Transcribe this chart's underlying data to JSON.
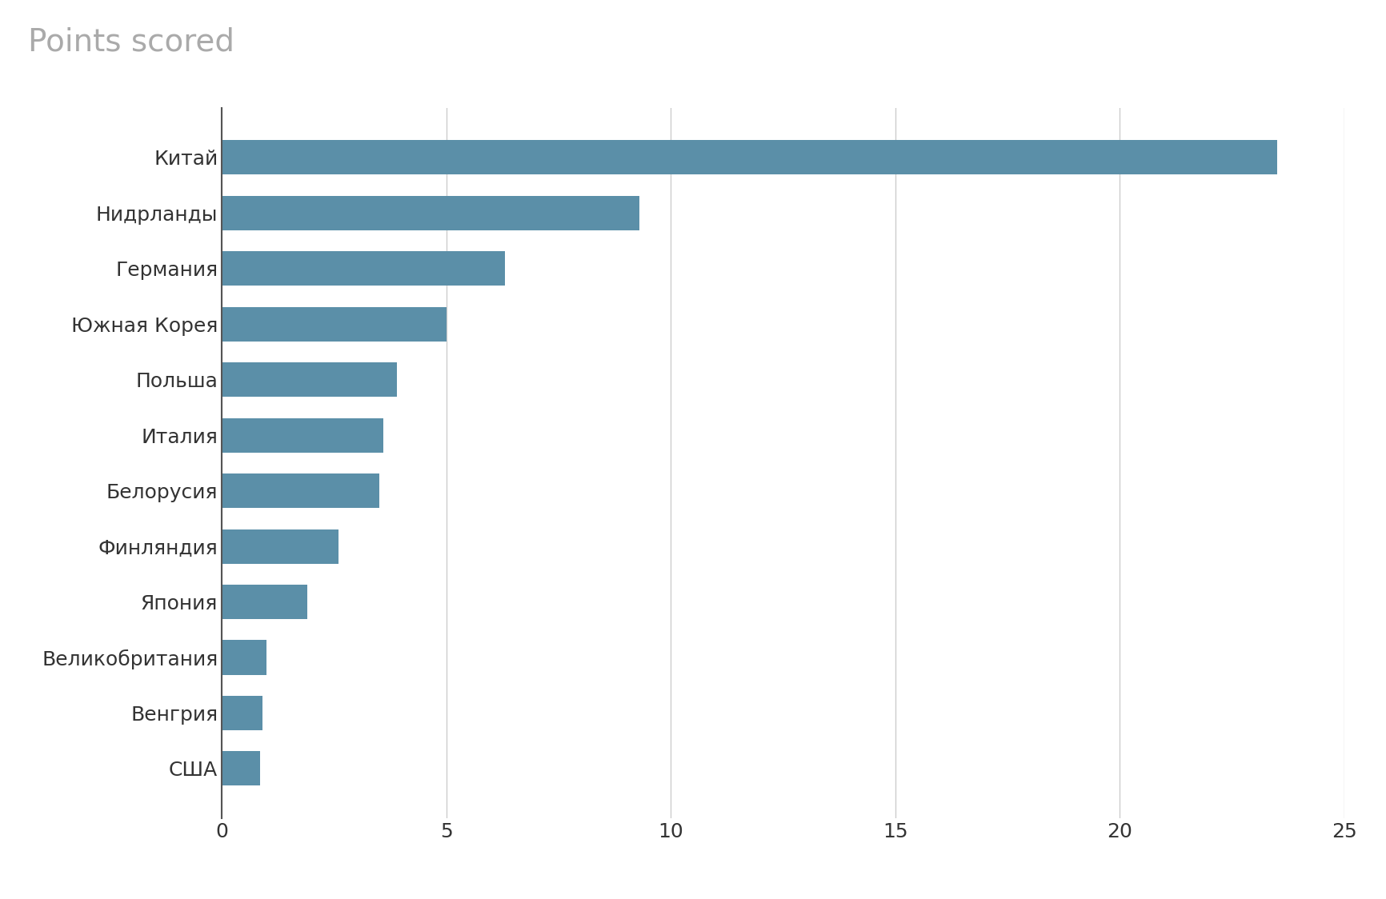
{
  "title": "Points scored",
  "categories": [
    "Китай",
    "Нидрланды",
    "Германия",
    "Южная Корея",
    "Польша",
    "Италия",
    "Белорусия",
    "Финляндия",
    "Япония",
    "Великобритания",
    "Венгрия",
    "США"
  ],
  "values": [
    23.5,
    9.3,
    6.3,
    5.0,
    3.9,
    3.6,
    3.5,
    2.6,
    1.9,
    1.0,
    0.9,
    0.85
  ],
  "bar_color": "#5b8fa8",
  "background_color": "#ffffff",
  "xlim": [
    0,
    25
  ],
  "xticks": [
    0,
    5,
    10,
    15,
    20,
    25
  ],
  "title_fontsize": 28,
  "tick_fontsize": 18,
  "bar_height": 0.62,
  "grid_color": "#cccccc",
  "axis_line_color": "#555555",
  "label_color": "#333333",
  "title_color": "#aaaaaa"
}
